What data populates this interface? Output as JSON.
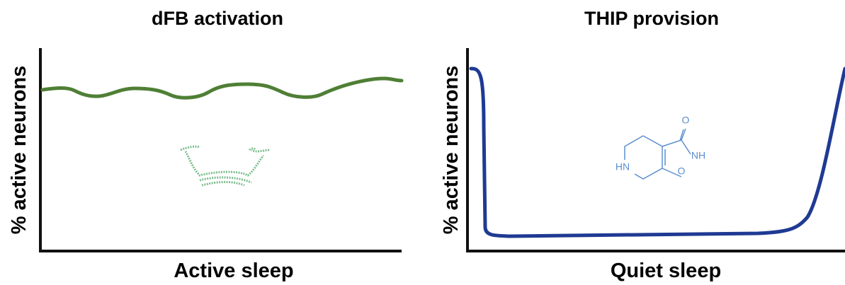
{
  "panels": [
    {
      "title": "dFB activation",
      "y_label": "% active neurons",
      "x_label": "Active sleep"
    },
    {
      "title": "THIP provision",
      "y_label": "% active neurons",
      "x_label": "Quiet sleep",
      "molecule": {
        "atoms": [
          "O",
          "NH",
          "HN",
          "O"
        ]
      }
    }
  ]
}
